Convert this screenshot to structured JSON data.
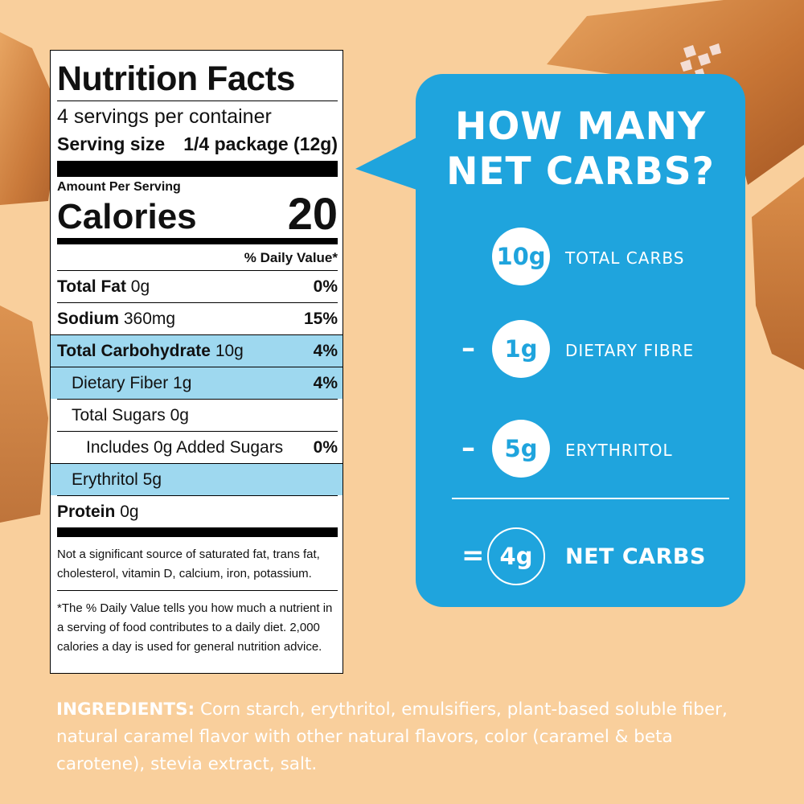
{
  "nutrition": {
    "title": "Nutrition Facts",
    "servings": "4 servings per container",
    "serving_label": "Serving size",
    "serving_value": "1/4 package (12g)",
    "amount_per_serving": "Amount Per Serving",
    "calories_label": "Calories",
    "calories_value": "20",
    "daily_value_header": "% Daily Value*",
    "rows": [
      {
        "label": "Total Fat",
        "amount": "0g",
        "pct": "0%"
      },
      {
        "label": "Sodium",
        "amount": "360mg",
        "pct": "15%"
      },
      {
        "label": "Total Carbohydrate",
        "amount": "10g",
        "pct": "4%"
      },
      {
        "label": "Dietary Fiber 1g",
        "pct": "4%"
      },
      {
        "label": "Total Sugars 0g"
      },
      {
        "label": "Includes 0g Added Sugars",
        "pct": "0%"
      },
      {
        "label": "Erythritol 5g"
      },
      {
        "label": "Protein",
        "amount": "0g"
      }
    ],
    "footnote_1": "Not a significant source of saturated fat, trans fat, cholesterol, vitamin D, calcium, iron, potassium.",
    "footnote_2": "*The % Daily Value tells you how much a nutrient in a serving of food contributes to a daily diet. 2,000 calories a day is used for general nutrition advice."
  },
  "net_carbs": {
    "heading_line1": "HOW MANY",
    "heading_line2": "NET CARBS?",
    "items": [
      {
        "operator": "",
        "value": "10g",
        "label": "TOTAL CARBS"
      },
      {
        "operator": "–",
        "value": "1g",
        "label": "DIETARY FIBRE"
      },
      {
        "operator": "–",
        "value": "5g",
        "label": "ERYTHRITOL"
      }
    ],
    "result": {
      "operator": "=",
      "value": "4g",
      "label": "NET CARBS"
    }
  },
  "ingredients": {
    "label": "INGREDIENTS:",
    "text": "Corn starch, erythritol, emulsifiers, plant-based soluble fiber, natural caramel flavor with other natural flavors, color (caramel & beta carotene), stevia extract, salt."
  },
  "colors": {
    "background": "#f9cf9c",
    "bubble": "#1fa4dd",
    "highlight": "#9ed8ef",
    "caramel": "#c8773a"
  }
}
